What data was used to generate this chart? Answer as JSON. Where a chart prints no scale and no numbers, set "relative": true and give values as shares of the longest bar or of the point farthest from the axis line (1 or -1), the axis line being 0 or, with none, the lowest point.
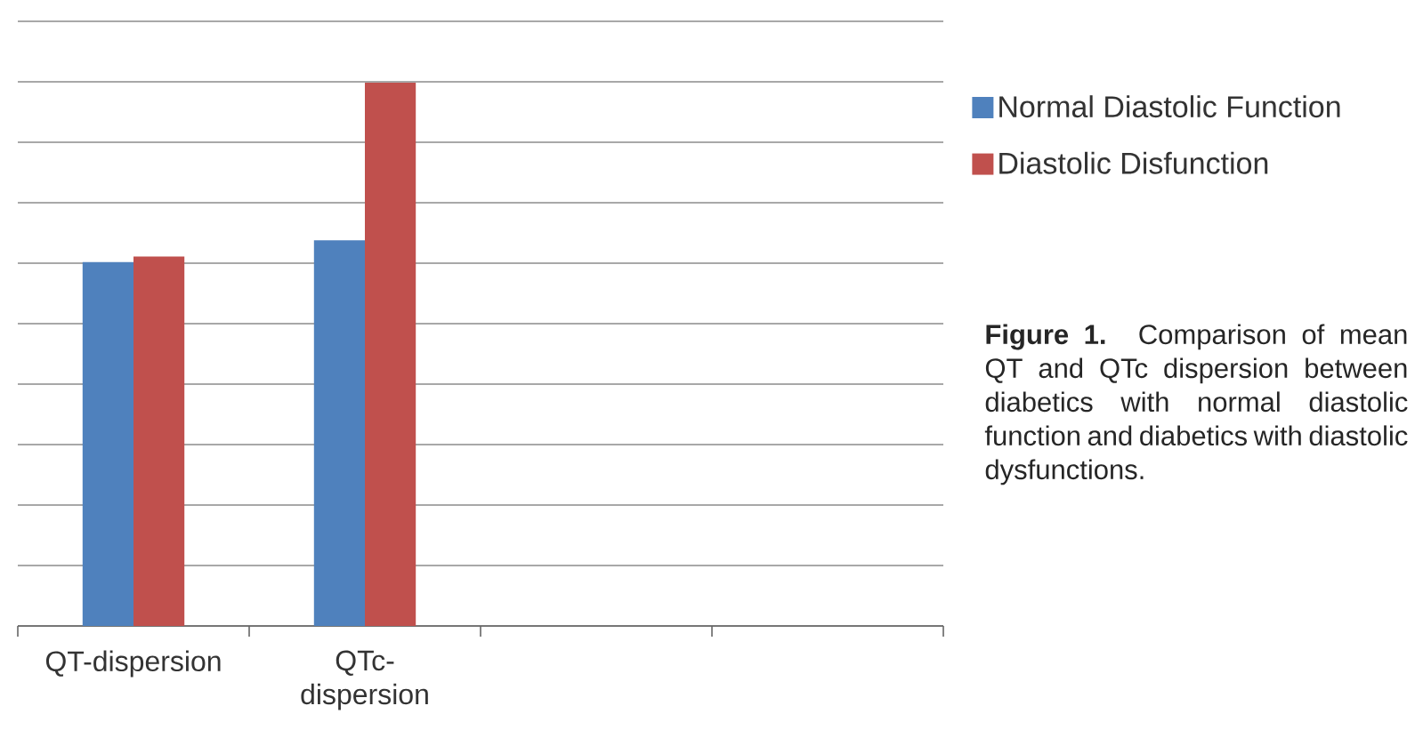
{
  "chart_data": {
    "type": "bar",
    "relative": true,
    "grid": "y",
    "legend": "right",
    "categories": [
      "QT-dispersion",
      "QTc-dispersion",
      null,
      null
    ],
    "series": [
      {
        "name": "Normal Diastolic Function",
        "color": "#4f81bd",
        "values": [
          0.67,
          0.71,
          null,
          null
        ]
      },
      {
        "name": "Diastolic Disfunction",
        "color": "#c0504d",
        "values": [
          0.68,
          1,
          null,
          null
        ]
      }
    ],
    "annotations": [
      "**Figure 1.** Comparison of mean QT and QTc dispersion between diabetics with normal diastolic function and diabetics with diastolic dysfunctions."
    ]
  }
}
